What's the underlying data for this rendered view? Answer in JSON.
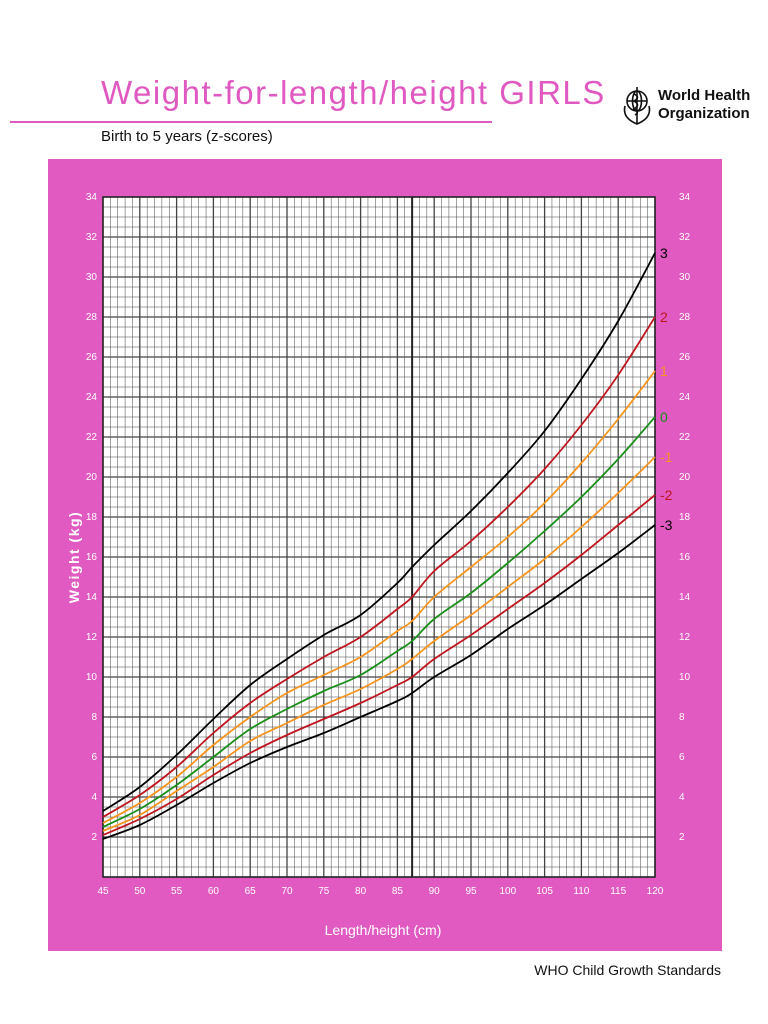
{
  "header": {
    "title": "Weight-for-length/height  GIRLS",
    "subtitle": "Birth to 5 years (z-scores)",
    "org_line1": "World Health",
    "org_line2": "Organization",
    "logo_icon": "who-emblem-icon"
  },
  "footer": {
    "text": "WHO Child Growth Standards"
  },
  "colors": {
    "page_accent": "#e059c0",
    "panel": "#e05ac1",
    "grid": "#444444",
    "z3": "#000000",
    "z2": "#c0161f",
    "z1": "#f7941d",
    "z0": "#1a8f1a"
  },
  "chart_data": {
    "type": "line",
    "xlabel": "Length/height (cm)",
    "ylabel": "Weight (kg)",
    "xlim": [
      45,
      120
    ],
    "ylim": [
      0,
      34
    ],
    "x_ticks": [
      45,
      50,
      55,
      60,
      65,
      70,
      75,
      80,
      85,
      90,
      95,
      100,
      105,
      110,
      115,
      120
    ],
    "y_ticks": [
      2,
      4,
      6,
      8,
      10,
      12,
      14,
      16,
      18,
      20,
      22,
      24,
      26,
      28,
      30,
      32,
      34
    ],
    "grid": true,
    "length_height_break": 87,
    "x": [
      45,
      50,
      55,
      60,
      65,
      70,
      75,
      80,
      85,
      87,
      90,
      95,
      100,
      105,
      110,
      115,
      120
    ],
    "series": [
      {
        "name": "3",
        "color": "#000000",
        "values": [
          3.3,
          4.5,
          6.1,
          7.9,
          9.6,
          10.9,
          12.1,
          13.1,
          14.7,
          15.5,
          16.6,
          18.3,
          20.2,
          22.3,
          24.9,
          27.8,
          31.2
        ]
      },
      {
        "name": "2",
        "color": "#c0161f",
        "values": [
          3.0,
          4.1,
          5.5,
          7.2,
          8.7,
          9.9,
          11.0,
          12.0,
          13.4,
          14.0,
          15.3,
          16.8,
          18.5,
          20.4,
          22.6,
          25.1,
          28.0
        ]
      },
      {
        "name": "1",
        "color": "#f7941d",
        "values": [
          2.7,
          3.7,
          5.0,
          6.6,
          8.0,
          9.2,
          10.1,
          11.0,
          12.3,
          12.8,
          14.0,
          15.5,
          17.0,
          18.7,
          20.7,
          22.9,
          25.3
        ]
      },
      {
        "name": "0",
        "color": "#1a8f1a",
        "values": [
          2.5,
          3.4,
          4.6,
          6.0,
          7.4,
          8.4,
          9.3,
          10.1,
          11.3,
          11.8,
          12.9,
          14.2,
          15.7,
          17.3,
          19.0,
          20.9,
          23.0
        ]
      },
      {
        "name": "-1",
        "color": "#f7941d",
        "values": [
          2.3,
          3.1,
          4.3,
          5.5,
          6.8,
          7.7,
          8.6,
          9.4,
          10.4,
          10.9,
          11.8,
          13.1,
          14.5,
          15.9,
          17.5,
          19.2,
          21.0
        ]
      },
      {
        "name": "-2",
        "color": "#c0161f",
        "values": [
          2.1,
          2.9,
          3.9,
          5.1,
          6.2,
          7.1,
          7.9,
          8.7,
          9.6,
          10.0,
          10.9,
          12.1,
          13.4,
          14.7,
          16.1,
          17.6,
          19.1
        ]
      },
      {
        "name": "-3",
        "color": "#000000",
        "values": [
          1.9,
          2.6,
          3.6,
          4.7,
          5.7,
          6.5,
          7.2,
          8.0,
          8.8,
          9.2,
          10.0,
          11.1,
          12.4,
          13.6,
          14.9,
          16.2,
          17.6
        ]
      }
    ]
  }
}
